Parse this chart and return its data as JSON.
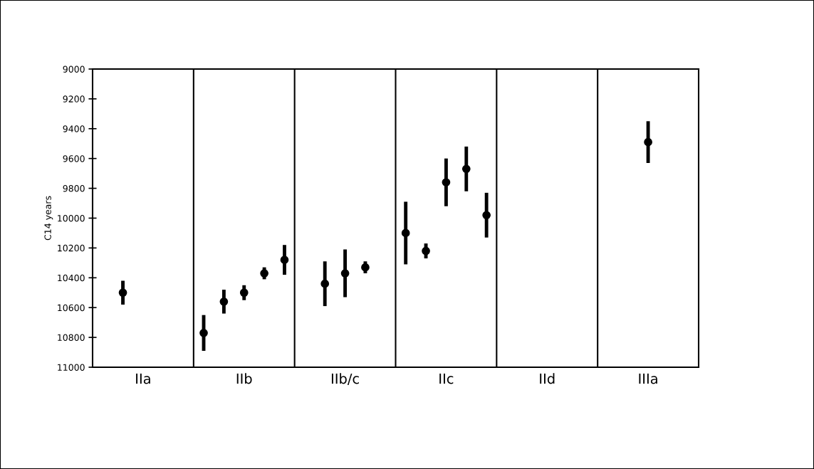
{
  "chart_data": {
    "type": "scatter",
    "ylabel": "C14 years",
    "categories": [
      null,
      null,
      "IIa",
      null,
      null,
      null,
      null,
      "IIb",
      null,
      null,
      null,
      null,
      "IIb/c",
      null,
      null,
      null,
      null,
      "IIc",
      null,
      null,
      null,
      null,
      "IId",
      null,
      null,
      null,
      null,
      "IIIa",
      null,
      null
    ],
    "ylim": [
      11000,
      9000
    ],
    "yticks": [
      9000,
      9200,
      9400,
      9600,
      9800,
      10000,
      10200,
      10400,
      10600,
      10800,
      11000
    ],
    "marker": "circle",
    "series": [
      {
        "color": "#000000",
        "values": [
          null,
          10500,
          null,
          null,
          null,
          10770,
          10560,
          10500,
          10370,
          10280,
          null,
          10440,
          10370,
          10330,
          null,
          10100,
          10220,
          9760,
          9670,
          9980,
          null,
          null,
          null,
          null,
          null,
          null,
          null,
          9490,
          null,
          null
        ],
        "errors": [
          null,
          80,
          null,
          null,
          null,
          120,
          80,
          50,
          40,
          100,
          null,
          150,
          160,
          40,
          null,
          210,
          50,
          160,
          150,
          150,
          null,
          null,
          null,
          null,
          null,
          null,
          null,
          140,
          null,
          null
        ]
      }
    ]
  }
}
